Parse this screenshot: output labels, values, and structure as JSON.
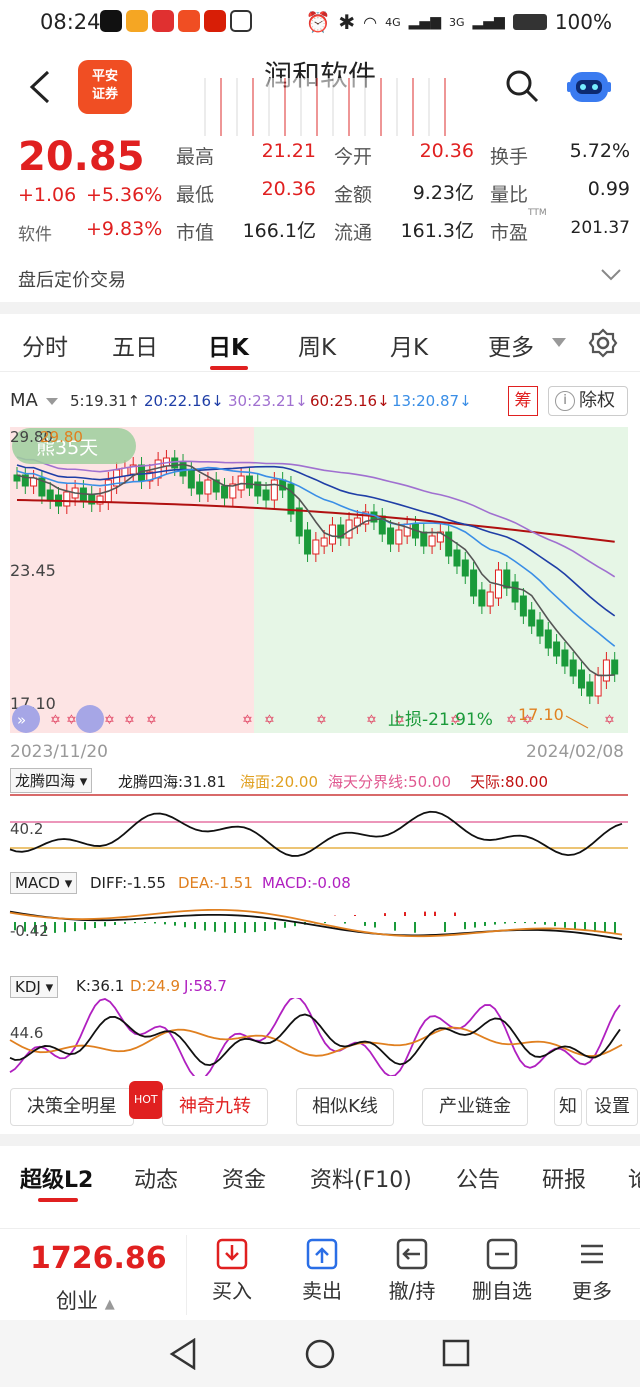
{
  "status_bar": {
    "time": "08:24",
    "network_1": "4G",
    "network_2": "3G",
    "battery": "100%"
  },
  "header": {
    "stock_name": "润和软件",
    "logo_text_1": "平安",
    "logo_text_2": "证券"
  },
  "quote": {
    "price": "20.85",
    "change": "+1.06",
    "change_pct": "+5.36%",
    "sector": "软件",
    "sector_pct": "+9.83%",
    "high_label": "最高",
    "high": "21.21",
    "open_label": "今开",
    "open": "20.36",
    "turnover_label": "换手",
    "turnover": "5.72%",
    "low_label": "最低",
    "low": "20.36",
    "amount_label": "金额",
    "amount": "9.23亿",
    "volratio_label": "量比",
    "volratio": "0.99",
    "mcap_label": "市值",
    "mcap": "166.1亿",
    "float_label": "流通",
    "float": "161.3亿",
    "pe_label": "市盈",
    "pe_tag": "TTM",
    "pe": "201.37",
    "after_hours": "盘后定价交易"
  },
  "period_tabs": [
    "分时",
    "五日",
    "日K",
    "周K",
    "月K",
    "更多"
  ],
  "active_tab": "日K",
  "ma_legend": {
    "label": "MA",
    "ma5": "5:19.31↑",
    "ma20": "20:22.16↓",
    "ma30": "30:23.21↓",
    "ma60": "60:25.16↓",
    "ma13": "13:20.87↓",
    "chou": "筹",
    "chuquan": "除权"
  },
  "kline": {
    "y_top": "29.80",
    "y_top_2": "29.80",
    "y_mid": "23.45",
    "y_low": "17.10",
    "bear_badge": "熊35天",
    "stoploss_label": "止损-21.91%",
    "low_marker": "17.10",
    "date_start": "2023/11/20",
    "date_end": "2024/02/08"
  },
  "indicator_1": {
    "name": "龙腾四海",
    "main": "龙腾四海:31.81",
    "haimian": "海面:20.00",
    "haitian": "海天分界线:50.00",
    "tianji": "天际:80.00",
    "y_label": "40.2"
  },
  "macd": {
    "name": "MACD",
    "diff": "DIFF:-1.55",
    "dea": "DEA:-1.51",
    "macd": "MACD:-0.08",
    "y_label": "-0.42"
  },
  "kdj": {
    "name": "KDJ",
    "k": "K:36.1",
    "d": "D:24.9",
    "j": "J:58.7",
    "y_label": "44.6"
  },
  "chips": [
    "决策全明星",
    "神奇九转",
    "相似K线",
    "产业链金",
    "知",
    "设置"
  ],
  "hot_badge": "HOT",
  "info_tabs": [
    "超级L2",
    "动态",
    "资金",
    "资料(F10)",
    "公告",
    "研报",
    "论"
  ],
  "index": {
    "value": "1726.86",
    "name": "创业"
  },
  "actions": [
    "买入",
    "卖出",
    "撤/持",
    "删自选",
    "更多"
  ],
  "colors": {
    "up": "#e02020",
    "down": "#1a9a3a",
    "ma5": "#333333",
    "ma13": "#3a8ee6",
    "ma20": "#1f3ea6",
    "ma30": "#a070d0",
    "ma60": "#b01010"
  }
}
